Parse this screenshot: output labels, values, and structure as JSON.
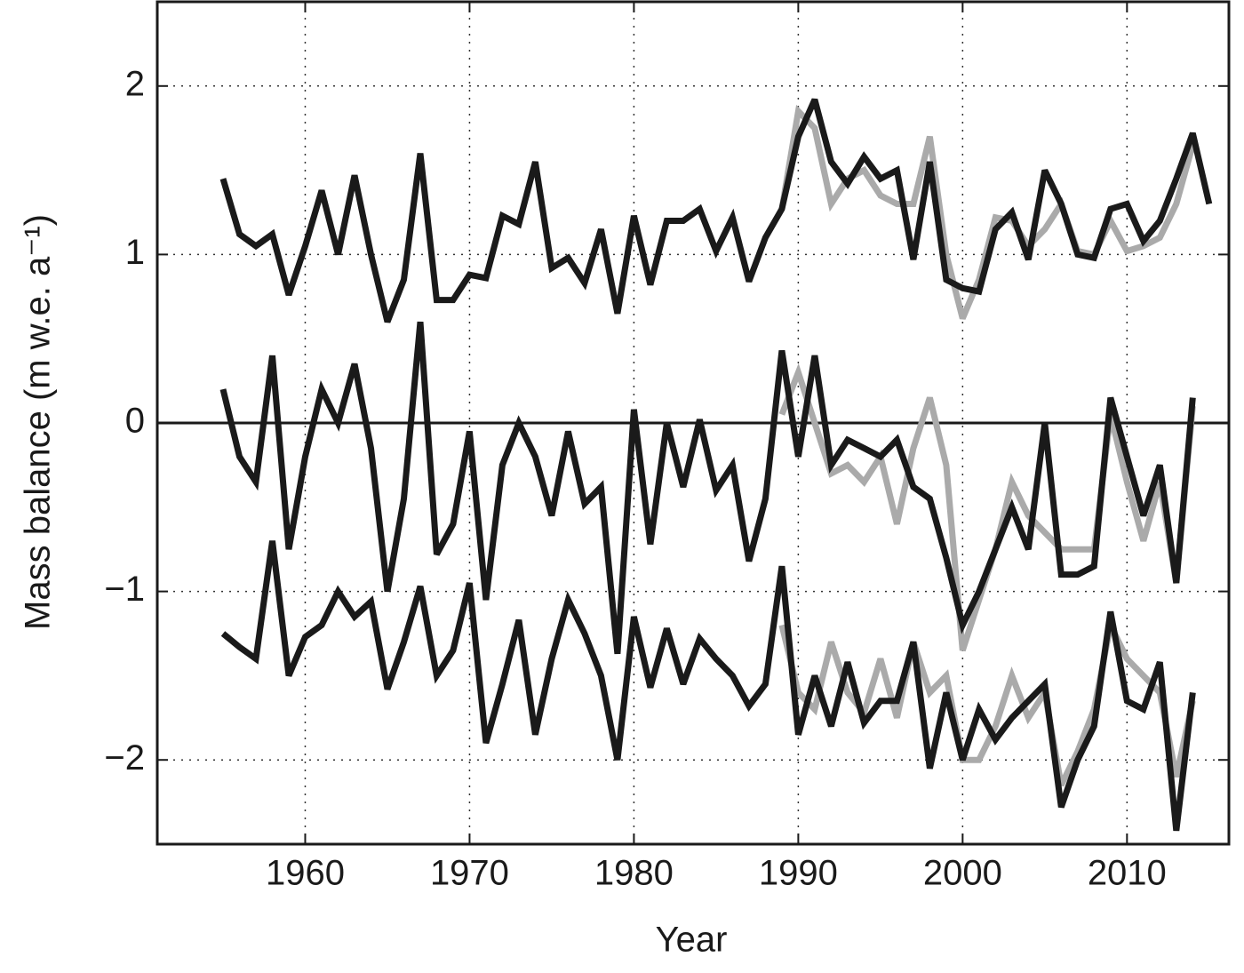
{
  "chart_data": {
    "type": "line",
    "x_label": "Year",
    "y_label": "Mass balance (m w.e. a⁻¹)",
    "x": [
      1955,
      1956,
      1957,
      1958,
      1959,
      1960,
      1961,
      1962,
      1963,
      1964,
      1965,
      1966,
      1967,
      1968,
      1969,
      1970,
      1971,
      1972,
      1973,
      1974,
      1975,
      1976,
      1977,
      1978,
      1979,
      1980,
      1981,
      1982,
      1983,
      1984,
      1985,
      1986,
      1987,
      1988,
      1989,
      1990,
      1991,
      1992,
      1993,
      1994,
      1995,
      1996,
      1997,
      1998,
      1999,
      2000,
      2001,
      2002,
      2003,
      2004,
      2005,
      2006,
      2007,
      2008,
      2009,
      2010,
      2011,
      2012,
      2013,
      2014,
      2015
    ],
    "series": [
      {
        "color": "#aaaaaa",
        "values": [
          null,
          null,
          null,
          null,
          null,
          null,
          null,
          null,
          null,
          null,
          null,
          null,
          null,
          null,
          null,
          null,
          null,
          null,
          null,
          null,
          null,
          null,
          null,
          null,
          null,
          null,
          null,
          null,
          null,
          null,
          null,
          null,
          null,
          null,
          1.27,
          1.85,
          1.75,
          1.3,
          1.45,
          1.5,
          1.35,
          1.3,
          1.3,
          1.7,
          1.0,
          0.62,
          0.85,
          1.22,
          1.2,
          1.05,
          1.15,
          1.3,
          1.02,
          1.0,
          1.2,
          1.02,
          1.05,
          1.1,
          1.3,
          1.65,
          null
        ]
      },
      {
        "color": "#aaaaaa",
        "values": [
          null,
          null,
          null,
          null,
          null,
          null,
          null,
          null,
          null,
          null,
          null,
          null,
          null,
          null,
          null,
          null,
          null,
          null,
          null,
          null,
          null,
          null,
          null,
          null,
          null,
          null,
          null,
          null,
          null,
          null,
          null,
          null,
          null,
          null,
          0.05,
          0.3,
          0.0,
          -0.3,
          -0.25,
          -0.35,
          -0.2,
          -0.6,
          -0.15,
          0.15,
          -0.25,
          -1.35,
          -1.05,
          -0.75,
          -0.35,
          -0.55,
          -0.65,
          -0.75,
          -0.75,
          -0.75,
          0.05,
          -0.35,
          -0.7,
          -0.35,
          -0.95,
          0.1,
          null
        ]
      },
      {
        "color": "#aaaaaa",
        "values": [
          null,
          null,
          null,
          null,
          null,
          null,
          null,
          null,
          null,
          null,
          null,
          null,
          null,
          null,
          null,
          null,
          null,
          null,
          null,
          null,
          null,
          null,
          null,
          null,
          null,
          null,
          null,
          null,
          null,
          null,
          null,
          null,
          null,
          null,
          -1.2,
          -1.6,
          -1.7,
          -1.3,
          -1.6,
          -1.72,
          -1.4,
          -1.75,
          -1.3,
          -1.6,
          -1.5,
          -2.0,
          -2.0,
          -1.8,
          -1.5,
          -1.75,
          -1.6,
          -2.15,
          -1.95,
          -1.7,
          -1.2,
          -1.4,
          -1.5,
          -1.6,
          -2.1,
          -1.65,
          null
        ]
      },
      {
        "color": "#1a1a1a",
        "values": [
          1.45,
          1.12,
          1.05,
          1.12,
          0.76,
          1.05,
          1.38,
          1.0,
          1.47,
          1.0,
          0.6,
          0.85,
          1.6,
          0.73,
          0.73,
          0.88,
          0.86,
          1.23,
          1.18,
          1.55,
          0.92,
          0.98,
          0.83,
          1.15,
          0.65,
          1.23,
          0.82,
          1.2,
          1.2,
          1.27,
          1.02,
          1.22,
          0.84,
          1.1,
          1.27,
          1.7,
          1.92,
          1.55,
          1.42,
          1.58,
          1.45,
          1.5,
          0.97,
          1.55,
          0.85,
          0.8,
          0.78,
          1.15,
          1.25,
          0.97,
          1.5,
          1.3,
          1.0,
          0.98,
          1.27,
          1.3,
          1.08,
          1.2,
          1.45,
          1.72,
          1.3
        ]
      },
      {
        "color": "#1a1a1a",
        "values": [
          0.2,
          -0.2,
          -0.35,
          0.4,
          -0.75,
          -0.2,
          0.2,
          0.0,
          0.35,
          -0.15,
          -1.0,
          -0.45,
          0.6,
          -0.78,
          -0.6,
          -0.05,
          -1.05,
          -0.25,
          0.0,
          -0.2,
          -0.55,
          -0.05,
          -0.48,
          -0.38,
          -1.37,
          0.08,
          -0.72,
          0.0,
          -0.38,
          0.02,
          -0.4,
          -0.25,
          -0.82,
          -0.45,
          0.43,
          -0.2,
          0.4,
          -0.25,
          -0.1,
          -0.15,
          -0.2,
          -0.1,
          -0.38,
          -0.45,
          -0.8,
          -1.2,
          -1.0,
          -0.75,
          -0.5,
          -0.75,
          0.0,
          -0.9,
          -0.9,
          -0.85,
          0.15,
          -0.2,
          -0.55,
          -0.25,
          -0.95,
          0.15,
          null
        ]
      },
      {
        "color": "#1a1a1a",
        "values": [
          -1.25,
          -1.33,
          -1.4,
          -0.7,
          -1.5,
          -1.27,
          -1.2,
          -1.0,
          -1.15,
          -1.06,
          -1.58,
          -1.3,
          -0.97,
          -1.5,
          -1.35,
          -0.95,
          -1.9,
          -1.55,
          -1.17,
          -1.85,
          -1.4,
          -1.05,
          -1.25,
          -1.5,
          -2.0,
          -1.15,
          -1.57,
          -1.22,
          -1.55,
          -1.28,
          -1.4,
          -1.5,
          -1.68,
          -1.55,
          -0.85,
          -1.85,
          -1.5,
          -1.8,
          -1.42,
          -1.78,
          -1.65,
          -1.65,
          -1.3,
          -2.05,
          -1.6,
          -2.0,
          -1.7,
          -1.88,
          -1.75,
          -1.65,
          -1.55,
          -2.28,
          -2.0,
          -1.8,
          -1.12,
          -1.65,
          -1.7,
          -1.42,
          -2.42,
          -1.6,
          null
        ]
      }
    ],
    "xlim": [
      1951,
      2016.2
    ],
    "ylim": [
      -2.5,
      2.5
    ],
    "xticks": [
      1960,
      1970,
      1980,
      1990,
      2000,
      2010
    ],
    "yticks": [
      {
        "value": -2,
        "label": "−2"
      },
      {
        "value": -1,
        "label": "−1"
      },
      0,
      1,
      2
    ],
    "grid": true
  }
}
